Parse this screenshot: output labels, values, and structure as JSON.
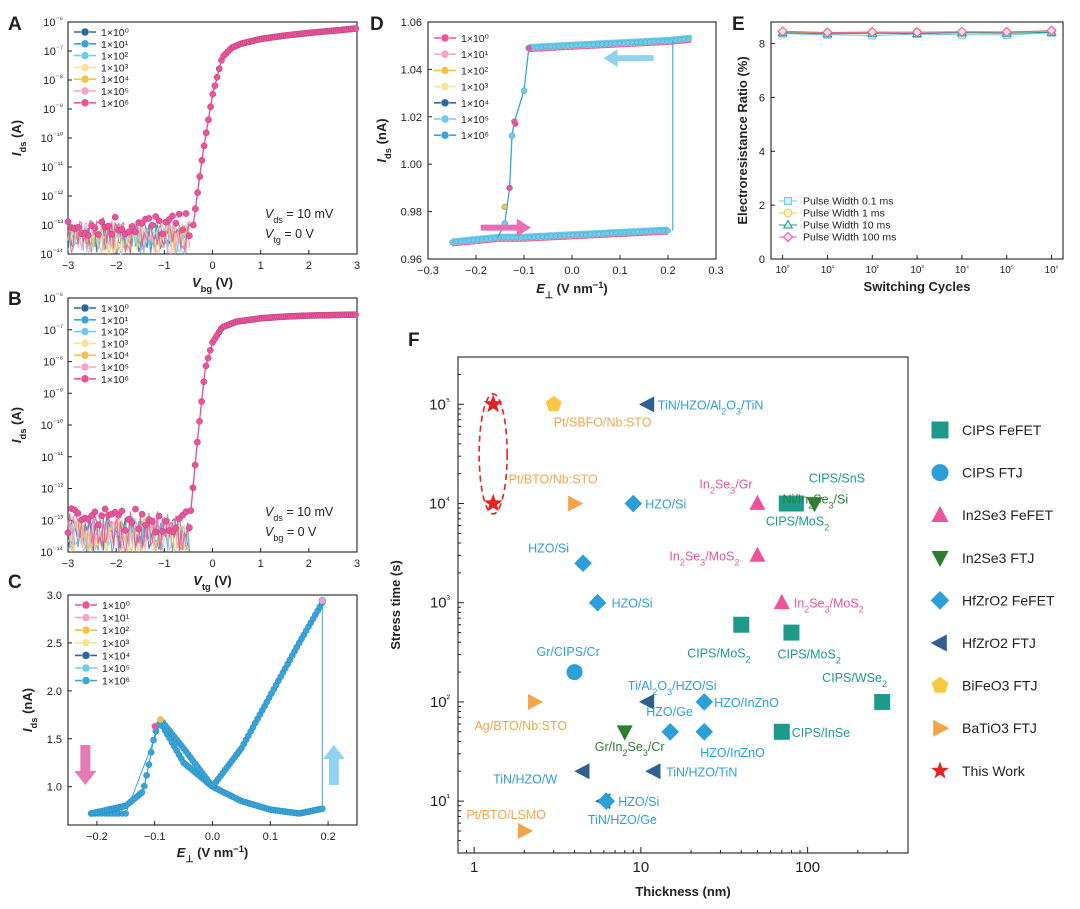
{
  "panels": {
    "A": "A",
    "B": "B",
    "C": "C",
    "D": "D",
    "E": "E",
    "F": "F"
  },
  "colors": {
    "pink": "#e8559a",
    "pinkLight": "#f4a6c8",
    "yellow": "#f2c24a",
    "yellowLight": "#f7e39a",
    "navy": "#2a6a9a",
    "blue": "#3aa4d8",
    "cyan": "#6fcbe8",
    "teal": "#1e9a8a",
    "lightblue": "#2c9fd8",
    "green": "#2e7d32",
    "darkblue": "#2f5f8f",
    "gold": "#f7c845",
    "orange": "#f3a54a",
    "red": "#e32222"
  },
  "cycles_legend": [
    "1×10⁰",
    "1×10¹",
    "1×10²",
    "1×10³",
    "1×10⁴",
    "1×10⁵",
    "1×10⁶"
  ],
  "chart_data": [
    {
      "id": "A",
      "type": "line",
      "title": "",
      "xlabel": "Vbg (V)",
      "ylabel": "Ids (A)",
      "xlim": [
        -3,
        3
      ],
      "ylim": [
        1e-14,
        1e-06
      ],
      "yscale": "log",
      "xticks": [
        -3,
        -2,
        -1,
        0,
        1,
        2,
        3
      ],
      "yticks": [
        "10⁻¹⁴",
        "10⁻¹³",
        "10⁻¹²",
        "10⁻¹¹",
        "10⁻¹⁰",
        "10⁻⁹",
        "10⁻⁸",
        "10⁻⁷",
        "10⁻⁶"
      ],
      "series_names": [
        "1×10⁰",
        "1×10¹",
        "1×10²",
        "1×10³",
        "1×10⁴",
        "1×10⁵",
        "1×10⁶"
      ],
      "x": [
        -0.4,
        -0.2,
        0,
        0.2,
        0.4,
        0.6,
        1.0,
        1.5,
        2.0,
        2.5,
        3.0
      ],
      "values": [
        1e-13,
        3e-11,
        3e-09,
        6e-08,
        1.3e-07,
        1.8e-07,
        2.6e-07,
        3.4e-07,
        4.2e-07,
        5e-07,
        6e-07
      ],
      "noise_floor": [
        1e-14,
        2e-13
      ],
      "annotations": [
        "Vds = 10 mV",
        "Vtg = 0 V"
      ]
    },
    {
      "id": "B",
      "type": "line",
      "title": "",
      "xlabel": "Vtg (V)",
      "ylabel": "Ids (A)",
      "xlim": [
        -3,
        3
      ],
      "ylim": [
        1e-14,
        1e-06
      ],
      "yscale": "log",
      "xticks": [
        -3,
        -2,
        -1,
        0,
        1,
        2,
        3
      ],
      "yticks": [
        "10⁻¹⁴",
        "10⁻¹³",
        "10⁻¹²",
        "10⁻¹¹",
        "10⁻¹⁰",
        "10⁻⁹",
        "10⁻⁸",
        "10⁻⁷",
        "10⁻⁶"
      ],
      "series_names": [
        "1×10⁰",
        "1×10¹",
        "1×10²",
        "1×10³",
        "1×10⁴",
        "1×10⁵",
        "1×10⁶"
      ],
      "x": [
        -0.45,
        -0.3,
        -0.15,
        0,
        0.2,
        0.5,
        1.0,
        1.5,
        2.0,
        2.5,
        3.0
      ],
      "values": [
        2e-13,
        5e-11,
        6e-09,
        4e-08,
        1.2e-07,
        1.8e-07,
        2.3e-07,
        2.6e-07,
        2.8e-07,
        2.9e-07,
        3e-07
      ],
      "noise_floor": [
        1e-14,
        2e-13
      ],
      "annotations": [
        "Vds = 10 mV",
        "Vbg = 0 V"
      ]
    },
    {
      "id": "C",
      "type": "line",
      "title": "",
      "xlabel": "E⊥ (V nm⁻¹)",
      "ylabel": "Ids (nA)",
      "xlim": [
        -0.25,
        0.25
      ],
      "ylim": [
        0.6,
        3.0
      ],
      "xticks": [
        -0.2,
        -0.1,
        0.0,
        0.1,
        0.2
      ],
      "xticklabels": [
        "-0.2",
        "-0.1",
        "0.0",
        "0.1",
        "0.2"
      ],
      "yticks": [
        1.0,
        1.5,
        2.0,
        2.5,
        3.0
      ],
      "yticklabels": [
        "1.0",
        "1.5",
        "2.0",
        "2.5",
        "3.0"
      ],
      "series_names": [
        "1×10⁰",
        "1×10¹",
        "1×10²",
        "1×10³",
        "1×10⁴",
        "1×10⁵",
        "1×10⁶"
      ],
      "forward": {
        "x": [
          -0.21,
          -0.15,
          -0.12,
          -0.11,
          -0.1,
          -0.09,
          -0.05,
          0.0,
          0.05,
          0.1,
          0.15,
          0.19
        ],
        "y": [
          0.72,
          0.8,
          0.95,
          1.23,
          1.55,
          1.7,
          1.4,
          1.0,
          1.4,
          1.95,
          2.5,
          2.92
        ]
      },
      "reverse": {
        "x": [
          0.21,
          0.19,
          0.15,
          0.1,
          0.05,
          0.0,
          -0.05,
          -0.09,
          -0.15,
          -0.21
        ],
        "y": [
          0.78,
          0.77,
          0.72,
          0.76,
          0.85,
          1.0,
          1.25,
          1.67,
          0.72,
          0.72
        ]
      }
    },
    {
      "id": "D",
      "type": "line",
      "title": "",
      "xlabel": "E⊥ (V nm⁻¹)",
      "ylabel": "Ids (nA)",
      "xlim": [
        -0.3,
        0.3
      ],
      "ylim": [
        0.96,
        1.06
      ],
      "xticks": [
        -0.3,
        -0.2,
        -0.1,
        0.0,
        0.1,
        0.2,
        0.3
      ],
      "xticklabels": [
        "-0.3",
        "-0.2",
        "-0.1",
        "0.0",
        "0.1",
        "0.2",
        "0.3"
      ],
      "yticks": [
        0.96,
        0.98,
        1.0,
        1.02,
        1.04,
        1.06
      ],
      "yticklabels": [
        "0.96",
        "0.98",
        "1.00",
        "1.02",
        "1.04",
        "1.06"
      ],
      "series_names": [
        "1×10⁰",
        "1×10¹",
        "1×10²",
        "1×10³",
        "1×10⁴",
        "1×10⁵",
        "1×10⁶"
      ],
      "lower": {
        "x": [
          -0.25,
          -0.2,
          -0.15,
          -0.1,
          0.0,
          0.1,
          0.2
        ],
        "y": [
          0.967,
          0.968,
          0.969,
          0.969,
          0.97,
          0.971,
          0.972
        ]
      },
      "upper": {
        "x": [
          -0.09,
          0.0,
          0.1,
          0.2,
          0.25
        ],
        "y": [
          1.049,
          1.05,
          1.051,
          1.052,
          1.053
        ]
      },
      "switch_up": {
        "x": [
          -0.14,
          -0.13,
          -0.125,
          -0.12,
          -0.1,
          -0.09
        ],
        "y": [
          0.975,
          0.99,
          1.012,
          1.018,
          1.031,
          1.049
        ]
      },
      "switch_down_x": 0.21
    },
    {
      "id": "E",
      "type": "line",
      "title": "",
      "xlabel": "Switching Cycles",
      "ylabel": "Electroresistance Ratio (%)",
      "xlim": [
        1,
        1000000
      ],
      "xscale": "log",
      "ylim": [
        0,
        8.8
      ],
      "xticks": [
        "10⁰",
        "10¹",
        "10²",
        "10³",
        "10⁴",
        "10⁵",
        "10⁶"
      ],
      "yticks": [
        0,
        2,
        4,
        6,
        8
      ],
      "yticklabels": [
        "0",
        "2",
        "4",
        "6",
        "8"
      ],
      "x": [
        1,
        10,
        100,
        1000,
        10000,
        100000,
        1000000
      ],
      "series": [
        {
          "name": "Pulse Width   0.1 ms",
          "values": [
            8.37,
            8.33,
            8.3,
            8.35,
            8.33,
            8.32,
            8.4
          ]
        },
        {
          "name": "Pulse Width      1 ms",
          "values": [
            8.42,
            8.39,
            8.41,
            8.43,
            8.41,
            8.42,
            8.46
          ]
        },
        {
          "name": "Pulse Width    10 ms",
          "values": [
            8.4,
            8.36,
            8.38,
            8.37,
            8.4,
            8.38,
            8.42
          ]
        },
        {
          "name": "Pulse Width  100 ms",
          "values": [
            8.45,
            8.41,
            8.43,
            8.42,
            8.44,
            8.43,
            8.48
          ]
        }
      ]
    },
    {
      "id": "F",
      "type": "scatter",
      "title": "",
      "xlabel": "Thickness (nm)",
      "ylabel": "Stress time (s)",
      "xscale": "log",
      "yscale": "log",
      "xlim": [
        0.8,
        400
      ],
      "ylim": [
        3,
        300000
      ],
      "xticks": [
        1,
        10,
        100
      ],
      "xticklabels": [
        "1",
        "10",
        "100"
      ],
      "yticks": [
        "10¹",
        "10²",
        "10³",
        "10⁴",
        "10⁵"
      ],
      "legend": [
        {
          "name": "CIPS FeFET",
          "marker": "square",
          "color": "#1e9a8a"
        },
        {
          "name": "CIPS FTJ",
          "marker": "circle",
          "color": "#2c9fd8"
        },
        {
          "name": "In2Se3 FeFET",
          "marker": "triangle-up",
          "color": "#e8559a"
        },
        {
          "name": "In2Se3 FTJ",
          "marker": "triangle-down",
          "color": "#2e7d32"
        },
        {
          "name": "HfZrO2 FeFET",
          "marker": "diamond",
          "color": "#2c9fd8"
        },
        {
          "name": "HfZrO2 FTJ",
          "marker": "triangle-left",
          "color": "#2f5f8f"
        },
        {
          "name": "BiFeO3 FTJ",
          "marker": "pentagon",
          "color": "#f7c845"
        },
        {
          "name": "BaTiO3 FTJ",
          "marker": "triangle-right",
          "color": "#f3a54a"
        },
        {
          "name": "This Work",
          "marker": "star",
          "color": "#e32222"
        }
      ],
      "points": [
        {
          "x": 1.3,
          "y": 100000,
          "marker": "star",
          "color": "#e32222",
          "label": ""
        },
        {
          "x": 1.3,
          "y": 10000,
          "marker": "star",
          "color": "#e32222",
          "label": ""
        },
        {
          "x": 3,
          "y": 100000,
          "marker": "pentagon",
          "color": "#f7c845",
          "label": "Pt/SBFO/Nb:STO"
        },
        {
          "x": 11,
          "y": 100000,
          "marker": "triangle-left",
          "color": "#2f5f8f",
          "label": "TiN/HZO/Al₂O₃/TiN"
        },
        {
          "x": 4,
          "y": 10000,
          "marker": "triangle-right",
          "color": "#f3a54a",
          "label": "Pt/BTO/Nb:STO"
        },
        {
          "x": 9,
          "y": 10000,
          "marker": "diamond",
          "color": "#2c9fd8",
          "label": "HZO/Si"
        },
        {
          "x": 50,
          "y": 10000,
          "marker": "triangle-up",
          "color": "#e8559a",
          "label": "In₂Se₃/Gr"
        },
        {
          "x": 75,
          "y": 10000,
          "marker": "square",
          "color": "#1e9a8a",
          "label": "CIPS/SnS"
        },
        {
          "x": 85,
          "y": 10000,
          "marker": "square",
          "color": "#1e9a8a",
          "label": "CIPS/MoS₂"
        },
        {
          "x": 110,
          "y": 10000,
          "marker": "triangle-down",
          "color": "#2e7d32",
          "label": "Ni/In₂Se₃/Si"
        },
        {
          "x": 50,
          "y": 3000,
          "marker": "triangle-up",
          "color": "#e8559a",
          "label": "In₂Se₃/MoS₂"
        },
        {
          "x": 4.5,
          "y": 2500,
          "marker": "diamond",
          "color": "#2c9fd8",
          "label": "HZO/Si"
        },
        {
          "x": 5.5,
          "y": 1000,
          "marker": "diamond",
          "color": "#2c9fd8",
          "label": "HZO/Si"
        },
        {
          "x": 70,
          "y": 1000,
          "marker": "triangle-up",
          "color": "#e8559a",
          "label": "In₂Se₃/MoS₂"
        },
        {
          "x": 40,
          "y": 600,
          "marker": "square",
          "color": "#1e9a8a",
          "label": "CIPS/MoS₂"
        },
        {
          "x": 80,
          "y": 500,
          "marker": "square",
          "color": "#1e9a8a",
          "label": "CIPS/MoS₂"
        },
        {
          "x": 4,
          "y": 200,
          "marker": "circle",
          "color": "#2c9fd8",
          "label": "Gr/CIPS/Cr"
        },
        {
          "x": 11,
          "y": 100,
          "marker": "triangle-left",
          "color": "#2f5f8f",
          "label": "Ti/Al₂O₃/HZO/Si"
        },
        {
          "x": 24,
          "y": 100,
          "marker": "diamond",
          "color": "#2c9fd8",
          "label": "HZO/InZnO"
        },
        {
          "x": 280,
          "y": 100,
          "marker": "square",
          "color": "#1e9a8a",
          "label": "CIPS/WSe₂"
        },
        {
          "x": 2.3,
          "y": 100,
          "marker": "triangle-right",
          "color": "#f3a54a",
          "label": "Ag/BTO/Nb:STO"
        },
        {
          "x": 15,
          "y": 50,
          "marker": "diamond",
          "color": "#2c9fd8",
          "label": "HZO/Ge"
        },
        {
          "x": 24,
          "y": 50,
          "marker": "diamond",
          "color": "#2c9fd8",
          "label": "HZO/InZnO"
        },
        {
          "x": 70,
          "y": 50,
          "marker": "square",
          "color": "#1e9a8a",
          "label": "CIPS/InSe"
        },
        {
          "x": 8,
          "y": 50,
          "marker": "triangle-down",
          "color": "#2e7d32",
          "label": "Gr/In₂Se₃/Cr"
        },
        {
          "x": 4.5,
          "y": 20,
          "marker": "triangle-left",
          "color": "#2f5f8f",
          "label": "TiN/HZO/W"
        },
        {
          "x": 12,
          "y": 20,
          "marker": "triangle-left",
          "color": "#2f5f8f",
          "label": "TiN/HZO/TiN"
        },
        {
          "x": 6,
          "y": 10,
          "marker": "triangle-left",
          "color": "#2f5f8f",
          "label": "TiN/HZO/Ge"
        },
        {
          "x": 6.2,
          "y": 10,
          "marker": "diamond",
          "color": "#2c9fd8",
          "label": "HZO/Si"
        },
        {
          "x": 2,
          "y": 5,
          "marker": "triangle-right",
          "color": "#f3a54a",
          "label": "Pt/BTO/LSMO"
        }
      ]
    }
  ]
}
